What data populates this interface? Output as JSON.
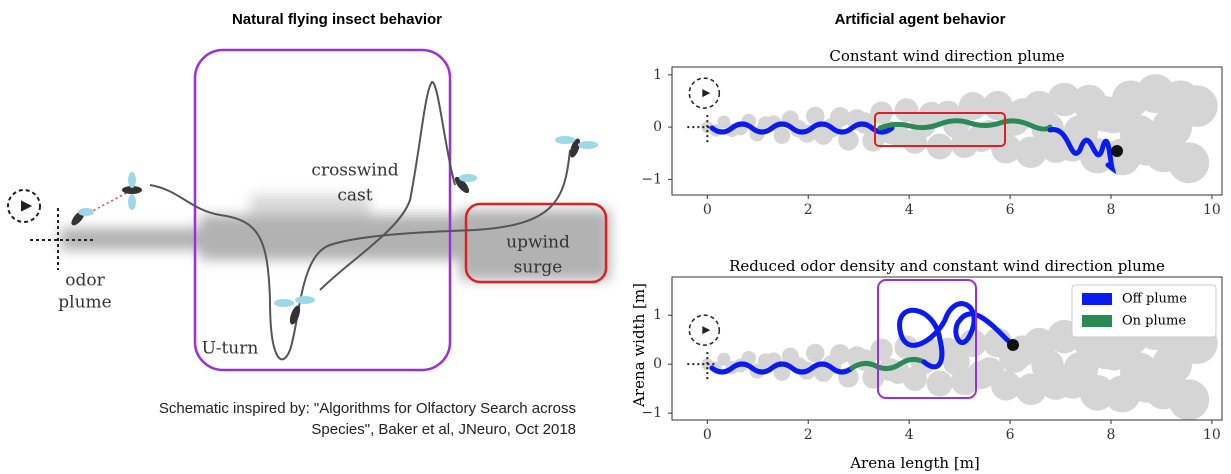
{
  "left": {
    "title": "Natural flying insect behavior",
    "annotations": {
      "odor": "odor",
      "plume": "plume",
      "crosswind": "crosswind",
      "cast": "cast",
      "upwind": "upwind",
      "surge": "surge",
      "uturn": "U-turn"
    },
    "caption": [
      "Schematic inspired by: \"Algorithms for Olfactory Search across",
      "Species\", Baker et al, JNeuro, Oct 2018"
    ]
  },
  "right": {
    "title": "Artificial agent behavior",
    "xlabel": "Arena length [m]",
    "ylabel": "Arena width [m]",
    "plots": [
      {
        "title": "Constant wind direction plume",
        "xlim": [
          -0.7,
          10.2
        ],
        "xticks": [
          0,
          2,
          4,
          6,
          8,
          10
        ],
        "ylim": [
          -1.3,
          1.15
        ],
        "yticks": [
          {
            "value": -1,
            "label": "−1"
          },
          0,
          1
        ]
      },
      {
        "title": "Reduced odor density and constant wind direction plume",
        "xlim": [
          -0.7,
          10.2
        ],
        "xticks": [
          0,
          2,
          4,
          6,
          8,
          10
        ],
        "ylim": [
          -1.14,
          1.78
        ],
        "yticks": [
          {
            "value": -1,
            "label": "−1"
          },
          0,
          1
        ],
        "legend": [
          {
            "name": "Off plume",
            "color": "#0a1bf0"
          },
          {
            "name": "On plume",
            "color": "#2a8a55"
          }
        ]
      }
    ]
  }
}
